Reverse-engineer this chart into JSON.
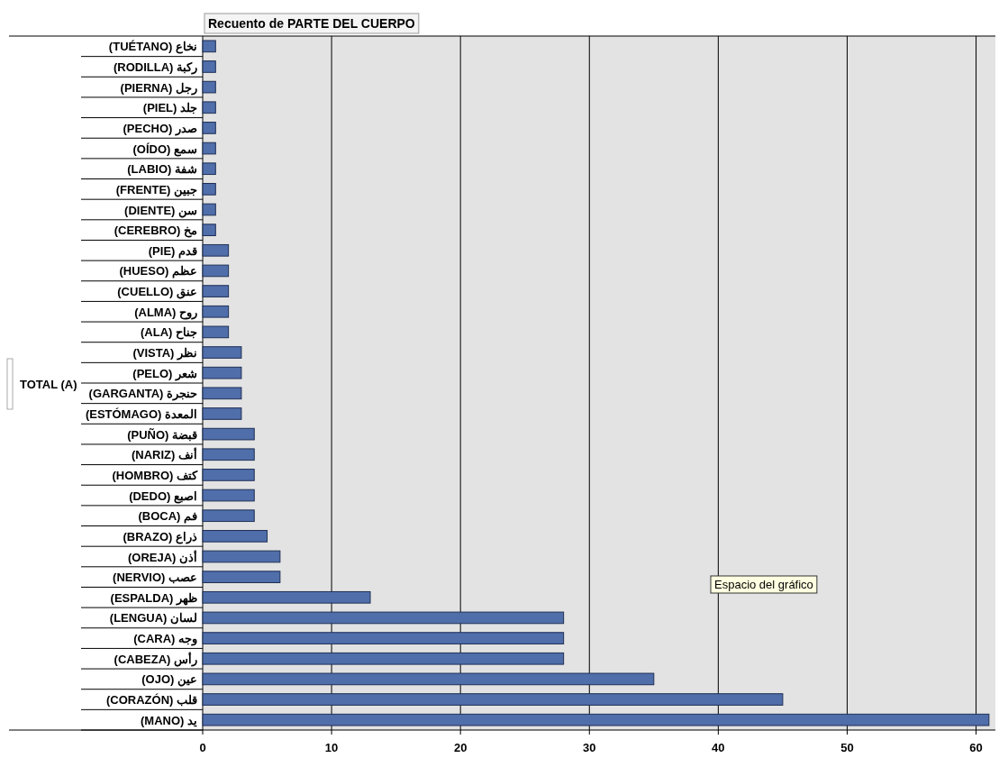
{
  "chart_data": {
    "type": "bar",
    "orientation": "horizontal",
    "title": "Recuento de PARTE DEL CUERPO",
    "categories": [
      "(TUÉTANO) نخاع",
      "(RODILLA) ركبة",
      "(PIERNA) رجل",
      "(PIEL) جلد",
      "(PECHO) صدر",
      "(OÍDO) سمع",
      "(LABIO) شفة",
      "(FRENTE) جبين",
      "(DIENTE) سن",
      "(CEREBRO) مخ",
      "(PIE) قدم",
      "(HUESO) عظم",
      "(CUELLO) عنق",
      "(ALMA) روح",
      "(ALA) جناح",
      "(VISTA) نظر",
      "(PELO) شعر",
      "(GARGANTA) حنجرة",
      "(ESTÓMAGO) المعدة",
      "(PUÑO) قبضة",
      "(NARIZ) أنف",
      "(HOMBRO) كتف",
      "(DEDO) اصبع",
      "(BOCA) فم",
      "(BRAZO) ذراع",
      "(OREJA) أذن",
      "(NERVIO) عصب",
      "(ESPALDA) ظهر",
      "(LENGUA) لسان",
      "(CARA) وجه",
      "(CABEZA) رأس",
      "(OJO) عين",
      "(CORAZÓN) قلب",
      "(MANO) يد"
    ],
    "values": [
      1,
      1,
      1,
      1,
      1,
      1,
      1,
      1,
      1,
      1,
      2,
      2,
      2,
      2,
      2,
      3,
      3,
      3,
      3,
      4,
      4,
      4,
      4,
      4,
      5,
      6,
      6,
      13,
      28,
      28,
      28,
      35,
      45,
      61
    ],
    "color": "#4f6eaa",
    "xlim": [
      0,
      61.5
    ],
    "xticks": [
      0,
      10,
      20,
      30,
      40,
      50,
      60
    ],
    "grid": "x",
    "annotations": [
      "TOTAL (A)",
      "Espacio del gráfico"
    ]
  }
}
